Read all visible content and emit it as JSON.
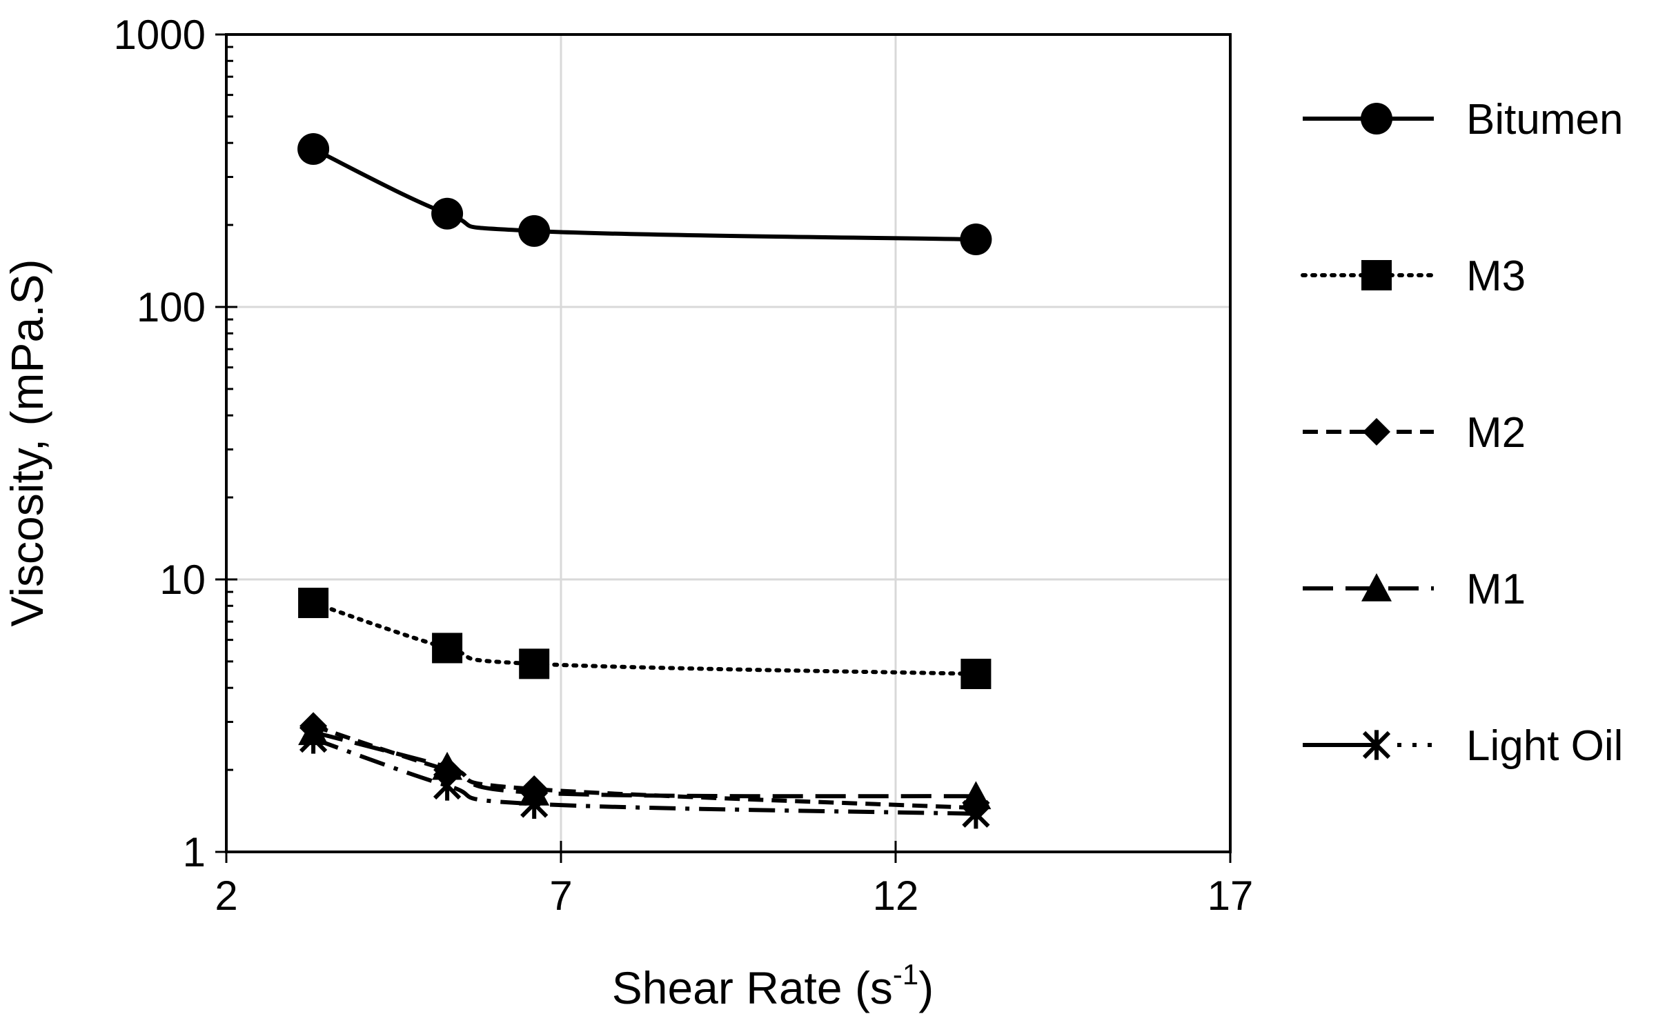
{
  "chart_data": {
    "type": "line",
    "title": "",
    "xlabel": "Shear Rate (s",
    "xlabel_sup": "-1",
    "xlabel_close": ")",
    "ylabel": "Viscosity, (mPa.S)",
    "xlim": [
      2,
      17
    ],
    "ylim": [
      1,
      1000
    ],
    "yscale": "log",
    "x_ticks": [
      2,
      7,
      12,
      17
    ],
    "x_tick_labels": [
      "2",
      "7",
      "12",
      "17"
    ],
    "y_ticks": [
      1,
      10,
      100,
      1000
    ],
    "y_tick_labels": [
      "1",
      "10",
      "100",
      "1000"
    ],
    "grid": true,
    "legend_position": "right",
    "series": [
      {
        "name": "Bitumen",
        "key": "bitumen",
        "marker": "circle",
        "line": "solid",
        "x": [
          3.3,
          5.3,
          6.6,
          13.2
        ],
        "y": [
          380,
          220,
          190,
          177
        ]
      },
      {
        "name": "M3",
        "key": "m3",
        "marker": "square",
        "line": "dotted",
        "x": [
          3.3,
          5.3,
          6.6,
          13.2
        ],
        "y": [
          8.2,
          5.6,
          4.9,
          4.5
        ]
      },
      {
        "name": "M2",
        "key": "m2",
        "marker": "diamond",
        "line": "dashed",
        "x": [
          3.3,
          5.3,
          6.6,
          13.2
        ],
        "y": [
          2.9,
          2.0,
          1.7,
          1.45
        ]
      },
      {
        "name": "M1",
        "key": "m1",
        "marker": "triangle",
        "line": "longdash",
        "x": [
          3.3,
          5.3,
          6.6,
          13.2
        ],
        "y": [
          2.75,
          2.05,
          1.65,
          1.6
        ]
      },
      {
        "name": "Light Oil",
        "key": "light-oil",
        "marker": "star",
        "line": "dashdot",
        "x": [
          3.3,
          5.3,
          6.6,
          13.2
        ],
        "y": [
          2.6,
          1.75,
          1.5,
          1.38
        ]
      }
    ]
  }
}
